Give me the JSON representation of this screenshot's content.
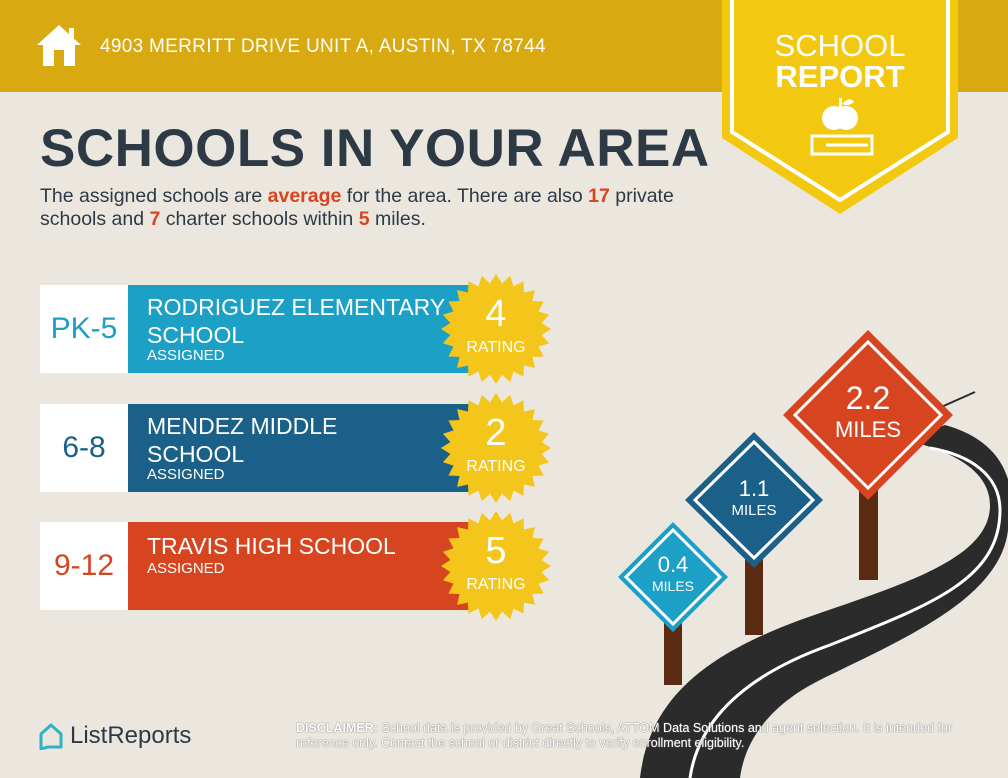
{
  "header": {
    "address": "4903 MERRITT DRIVE UNIT A, AUSTIN, TX 78744",
    "icon": "home-icon"
  },
  "badge": {
    "line1": "SCHOOL",
    "line2": "REPORT",
    "icon": "apple-on-book-icon"
  },
  "title": "SCHOOLS IN YOUR AREA",
  "subtitle": {
    "p1": "The assigned schools are ",
    "quality": "average",
    "p2": " for the area. There are also ",
    "private_count": "17",
    "p3": " private schools and ",
    "charter_count": "7",
    "p4": " charter schools within ",
    "miles": "5",
    "p5": " miles."
  },
  "schools": [
    {
      "grades": "PK-5",
      "name": "RODRIGUEZ ELEMENTARY SCHOOL",
      "status": "ASSIGNED",
      "rating": "4",
      "rating_label": "RATING",
      "color": "#1da0c6",
      "distance": "0.4",
      "unit": "MILES"
    },
    {
      "grades": "6-8",
      "name": "MENDEZ MIDDLE SCHOOL",
      "status": "ASSIGNED",
      "rating": "2",
      "rating_label": "RATING",
      "color": "#1a6088",
      "distance": "1.1",
      "unit": "MILES"
    },
    {
      "grades": "9-12",
      "name": "TRAVIS HIGH SCHOOL",
      "status": "ASSIGNED",
      "rating": "5",
      "rating_label": "RATING",
      "color": "#d64520",
      "distance": "2.2",
      "unit": "MILES"
    }
  ],
  "colors": {
    "header": "#d9a912",
    "badge": "#f2c811",
    "accent": "#d9441f",
    "star": "#f4c61b",
    "text": "#2d3a45"
  },
  "footer": {
    "brand": "ListReports",
    "disclaimer_label": "DISCLAIMER:",
    "disclaimer": " School data is provided by Great Schools, ATTOM Data Solutions and agent selection. It is intended for reference only. Contact the school or district directly to verify enrollment eligibility."
  }
}
